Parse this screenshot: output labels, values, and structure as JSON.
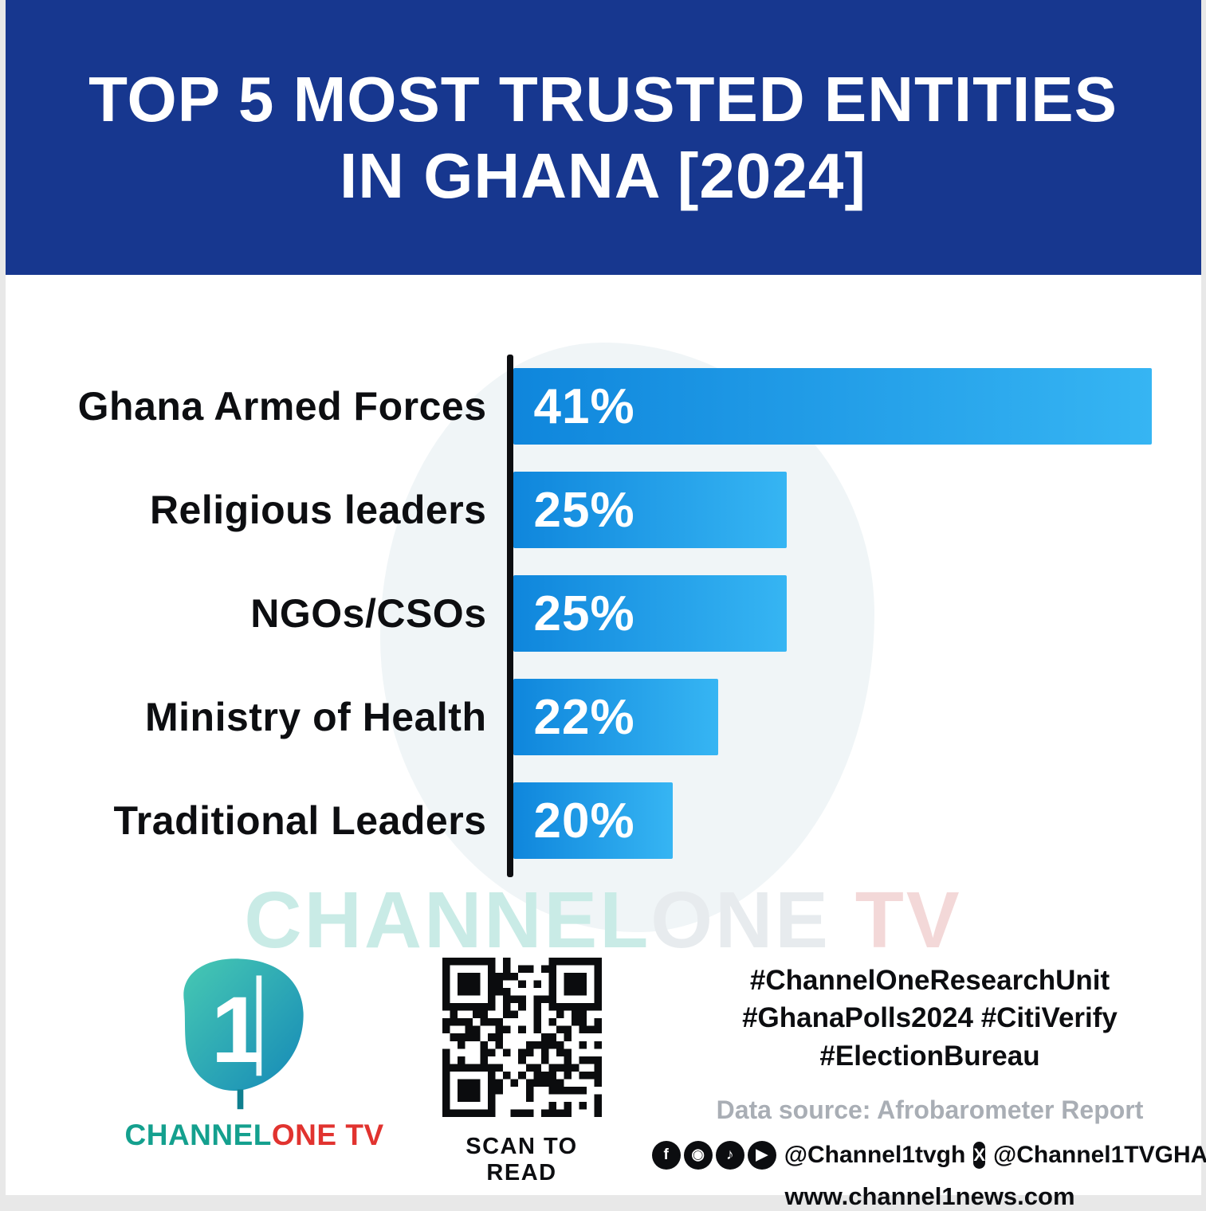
{
  "header": {
    "title_line1": "TOP 5 MOST TRUSTED ENTITIES",
    "title_line2": "IN GHANA [2024]",
    "bg_color": "#17378f"
  },
  "chart_data": {
    "type": "bar",
    "orientation": "horizontal",
    "title": "TOP 5 MOST TRUSTED ENTITIES IN GHANA [2024]",
    "categories": [
      "Ghana Armed Forces",
      "Religious leaders",
      "NGOs/CSOs",
      "Ministry of Health",
      "Traditional Leaders"
    ],
    "values": [
      41,
      25,
      25,
      22,
      20
    ],
    "value_labels": [
      "41%",
      "25%",
      "25%",
      "22%",
      "20%"
    ],
    "unit": "%",
    "xlim": [
      0,
      41
    ],
    "xlim_display": [
      13,
      41
    ],
    "grid": false,
    "legend": false,
    "bar_gradient": [
      "#0f86dc",
      "#36b5f3"
    ],
    "axis_color": "#0d0e11"
  },
  "watermark": {
    "part1": "CHANNEL",
    "part2": "ONE",
    "part3": " TV"
  },
  "footer": {
    "logo": {
      "mark_glyph": "1",
      "channel": "CHANNEL",
      "one_tv": "ONE TV"
    },
    "qr_caption": "SCAN TO READ",
    "hashtags": [
      "#ChannelOneResearchUnit",
      "#GhanaPolls2024 #CitiVerify",
      "#ElectionBureau"
    ],
    "data_source": "Data source: Afrobarometer Report",
    "social": {
      "icons": [
        {
          "name": "facebook-icon",
          "glyph": "f"
        },
        {
          "name": "instagram-icon",
          "glyph": "◉"
        },
        {
          "name": "tiktok-icon",
          "glyph": "♪"
        },
        {
          "name": "youtube-icon",
          "glyph": "▶"
        }
      ],
      "handle1": "@Channel1tvgh",
      "x_icon_glyph": "X",
      "handle2": "@Channel1TVGHA"
    },
    "website": "www.channel1news.com"
  },
  "colors": {
    "header_bg": "#17378f",
    "bar_start": "#0f86dc",
    "bar_end": "#36b5f3",
    "axis": "#0d0e11",
    "teal": "#14a08e",
    "red": "#e1332f",
    "gray_text": "#a9aeb5"
  }
}
